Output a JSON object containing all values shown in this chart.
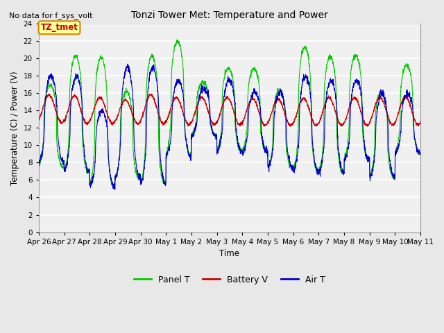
{
  "title": "Tonzi Tower Met: Temperature and Power",
  "no_data_text": "No data for f_sys_volt",
  "ylabel": "Temperature (C) / Power (V)",
  "xlabel": "Time",
  "ylim": [
    0,
    24
  ],
  "yticks": [
    0,
    2,
    4,
    6,
    8,
    10,
    12,
    14,
    16,
    18,
    20,
    22,
    24
  ],
  "xtick_labels": [
    "Apr 26",
    "Apr 27",
    "Apr 28",
    "Apr 29",
    "Apr 30",
    "May 1",
    "May 2",
    "May 3",
    "May 4",
    "May 5",
    "May 6",
    "May 7",
    "May 8",
    "May 9",
    "May 10",
    "May 11"
  ],
  "panel_color": "#00cc00",
  "battery_color": "#cc0000",
  "air_color": "#0000cc",
  "legend_labels": [
    "Panel T",
    "Battery V",
    "Air T"
  ],
  "annotation_label": "TZ_tmet",
  "annotation_box_color": "#ffff99",
  "annotation_box_edge": "#cc8800",
  "annotation_text_color": "#cc0000",
  "bg_color": "#e8e8e8",
  "plot_bg_color": "#f0f0f0",
  "n_days": 15,
  "n_pts_per_day": 144,
  "panel_peaks": [
    17.0,
    20.3,
    20.2,
    16.2,
    20.3,
    22.0,
    17.2,
    18.9,
    18.8,
    16.3,
    21.3,
    20.2,
    20.4,
    16.1,
    19.2
  ],
  "panel_valleys": [
    7.5,
    7.0,
    5.3,
    6.3,
    5.6,
    9.0,
    11.2,
    9.4,
    9.3,
    7.5,
    7.1,
    6.9,
    8.4,
    6.4,
    9.2
  ],
  "air_peaks": [
    18.0,
    18.0,
    14.0,
    19.0,
    19.0,
    17.5,
    16.5,
    17.5,
    16.2,
    16.1,
    18.0,
    17.5,
    17.5,
    16.0,
    16.0
  ],
  "air_valleys": [
    8.0,
    7.0,
    5.3,
    6.3,
    5.6,
    8.8,
    11.0,
    9.3,
    9.2,
    7.4,
    7.0,
    6.9,
    8.3,
    6.3,
    9.1
  ],
  "battery_peaks": [
    15.8,
    15.7,
    15.5,
    15.2,
    15.8,
    15.5,
    15.5,
    15.5,
    15.4,
    15.3,
    15.4,
    15.5,
    15.5,
    15.5,
    15.6
  ],
  "battery_valleys": [
    12.6,
    12.5,
    12.5,
    12.5,
    12.5,
    12.4,
    12.4,
    12.4,
    12.3,
    12.3,
    12.3,
    12.3,
    12.3,
    12.4,
    12.4
  ]
}
